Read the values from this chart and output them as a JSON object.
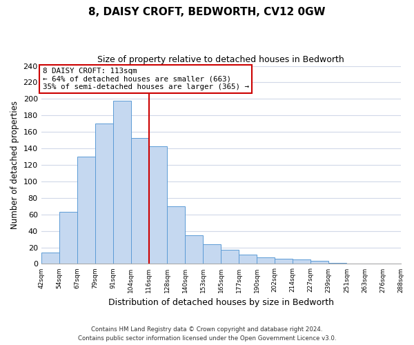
{
  "title": "8, DAISY CROFT, BEDWORTH, CV12 0GW",
  "subtitle": "Size of property relative to detached houses in Bedworth",
  "xlabel": "Distribution of detached houses by size in Bedworth",
  "ylabel": "Number of detached properties",
  "bin_labels": [
    "42sqm",
    "54sqm",
    "67sqm",
    "79sqm",
    "91sqm",
    "104sqm",
    "116sqm",
    "128sqm",
    "140sqm",
    "153sqm",
    "165sqm",
    "177sqm",
    "190sqm",
    "202sqm",
    "214sqm",
    "227sqm",
    "239sqm",
    "251sqm",
    "263sqm",
    "276sqm",
    "288sqm"
  ],
  "bar_heights": [
    14,
    63,
    130,
    170,
    198,
    153,
    143,
    70,
    35,
    24,
    17,
    11,
    8,
    6,
    5,
    4,
    1,
    0,
    0,
    0
  ],
  "bar_color": "#c5d8f0",
  "bar_edge_color": "#5b9bd5",
  "vline_x_index": 6,
  "vline_color": "#cc0000",
  "annotation_title": "8 DAISY CROFT: 113sqm",
  "annotation_line1": "← 64% of detached houses are smaller (663)",
  "annotation_line2": "35% of semi-detached houses are larger (365) →",
  "annotation_box_color": "#ffffff",
  "annotation_box_edge_color": "#cc0000",
  "ylim": [
    0,
    240
  ],
  "yticks": [
    0,
    20,
    40,
    60,
    80,
    100,
    120,
    140,
    160,
    180,
    200,
    220,
    240
  ],
  "footer_line1": "Contains HM Land Registry data © Crown copyright and database right 2024.",
  "footer_line2": "Contains public sector information licensed under the Open Government Licence v3.0.",
  "background_color": "#ffffff",
  "grid_color": "#d0d8e8"
}
